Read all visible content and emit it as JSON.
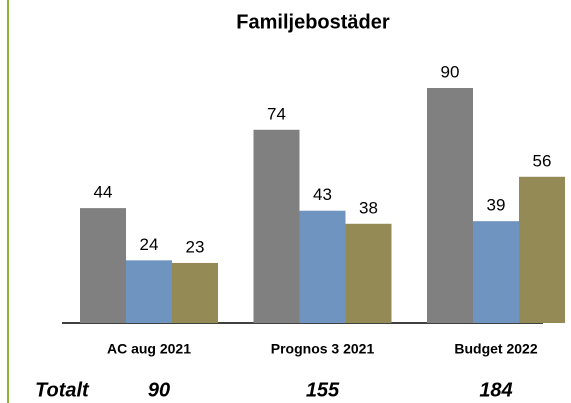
{
  "chart_data": {
    "type": "bar",
    "title": "Familjebostäder",
    "categories": [
      "AC aug 2021",
      "Prognos 3 2021",
      "Budget 2022"
    ],
    "series": [
      {
        "color": "#808080",
        "values": [
          44,
          74,
          90
        ]
      },
      {
        "color": "#7094c0",
        "values": [
          24,
          43,
          39
        ]
      },
      {
        "color": "#938a55",
        "values": [
          23,
          38,
          56
        ]
      }
    ],
    "totals": {
      "label": "Totalt",
      "values": [
        90,
        155,
        184
      ]
    }
  }
}
